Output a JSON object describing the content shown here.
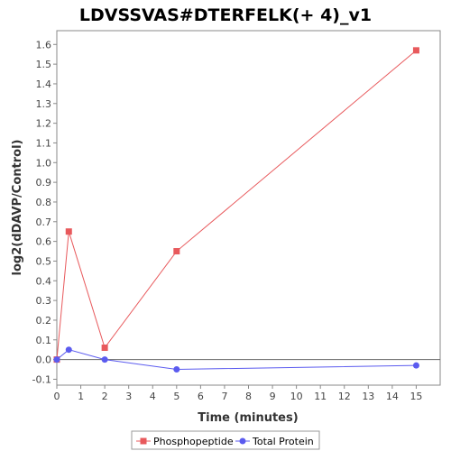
{
  "chart_data": {
    "type": "line",
    "title": "LDVSSVAS#DTERFELK(+ 4)_v1",
    "xlabel": "Time (minutes)",
    "ylabel": "log2(dDAVP/Control)",
    "xlim": [
      0,
      16
    ],
    "ylim": [
      -0.13,
      1.67
    ],
    "x_ticks": [
      0,
      1,
      2,
      3,
      4,
      5,
      6,
      7,
      8,
      9,
      10,
      11,
      12,
      13,
      14,
      15
    ],
    "y_ticks": [
      -0.1,
      0.0,
      0.1,
      0.2,
      0.3,
      0.4,
      0.5,
      0.6,
      0.7,
      0.8,
      0.9,
      1.0,
      1.1,
      1.2,
      1.3,
      1.4,
      1.5,
      1.6
    ],
    "y_tick_labels": [
      "-0.1",
      "0.0",
      "0.1",
      "0.2",
      "0.3",
      "0.4",
      "0.5",
      "0.6",
      "0.7",
      "0.8",
      "0.9",
      "1.0",
      "1.1",
      "1.2",
      "1.3",
      "1.4",
      "1.5",
      "1.6"
    ],
    "grid": false,
    "legend_position": "bottom",
    "series": [
      {
        "name": "Phosphopeptide",
        "color": "#e8595c",
        "marker": "square",
        "x": [
          0,
          0.5,
          2,
          5,
          15
        ],
        "y": [
          0.0,
          0.65,
          0.06,
          0.55,
          1.57
        ]
      },
      {
        "name": "Total Protein",
        "color": "#5b5bef",
        "marker": "circle",
        "x": [
          0,
          0.5,
          2,
          5,
          15
        ],
        "y": [
          0.0,
          0.05,
          0.0,
          -0.05,
          -0.03
        ]
      }
    ]
  }
}
